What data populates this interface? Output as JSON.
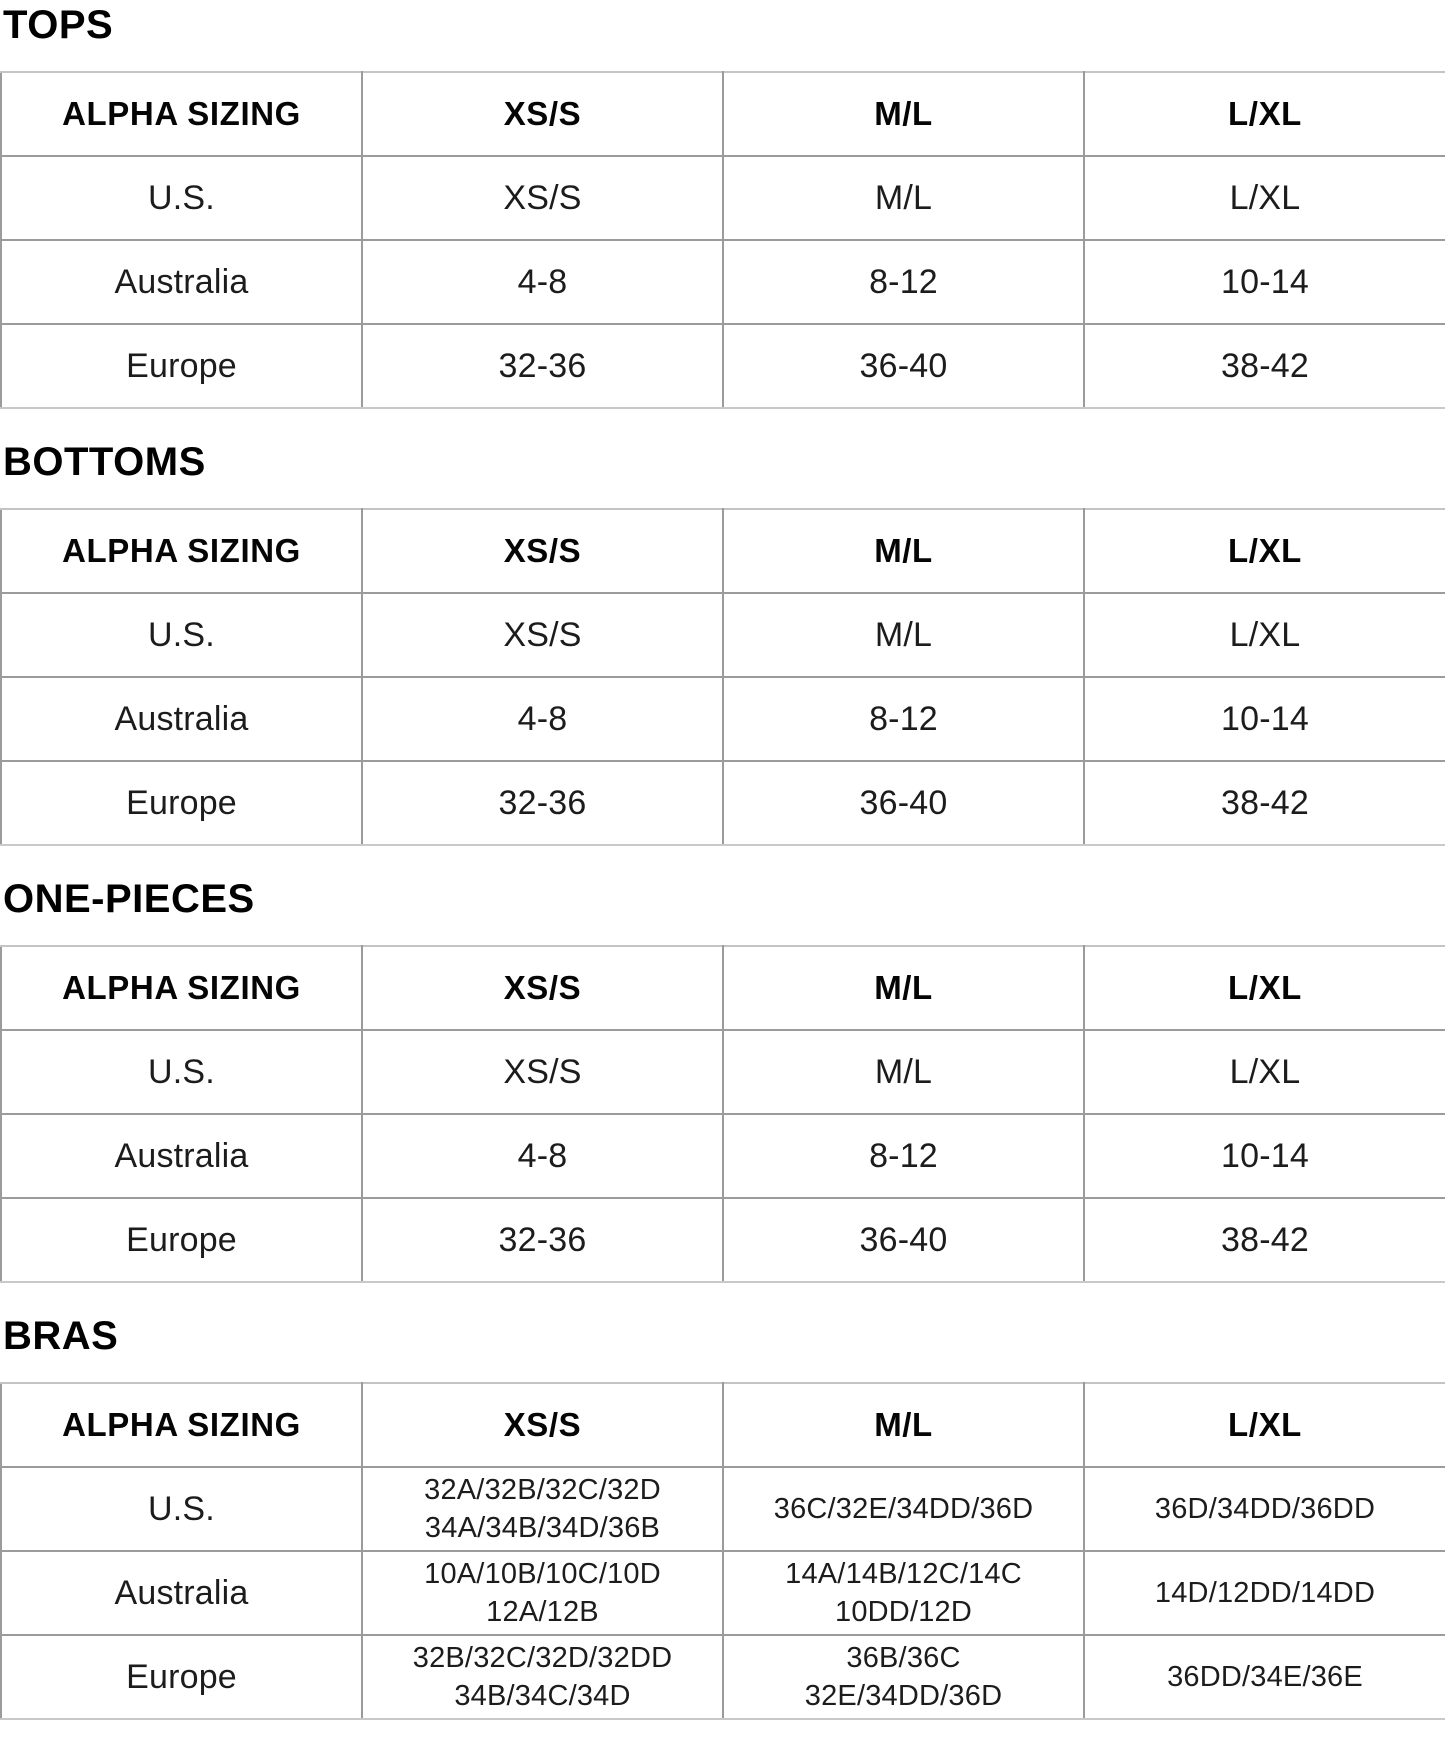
{
  "page": {
    "background": "#ffffff",
    "heading_color": "#000000",
    "body_text_color": "#1c1c1c",
    "inner_border_color": "#9b9b9b",
    "outer_border_color": "#c9c9c9"
  },
  "sections": [
    {
      "id": "tops",
      "title": "TOPS",
      "columns": [
        "ALPHA SIZING",
        "XS/S",
        "M/L",
        "L/XL"
      ],
      "compact_values": false,
      "rows": [
        {
          "label": "U.S.",
          "values": [
            [
              "XS/S"
            ],
            [
              "M/L"
            ],
            [
              "L/XL"
            ]
          ]
        },
        {
          "label": "Australia",
          "values": [
            [
              "4-8"
            ],
            [
              "8-12"
            ],
            [
              "10-14"
            ]
          ]
        },
        {
          "label": "Europe",
          "values": [
            [
              "32-36"
            ],
            [
              "36-40"
            ],
            [
              "38-42"
            ]
          ]
        }
      ]
    },
    {
      "id": "bottoms",
      "title": "BOTTOMS",
      "columns": [
        "ALPHA SIZING",
        "XS/S",
        "M/L",
        "L/XL"
      ],
      "compact_values": false,
      "rows": [
        {
          "label": "U.S.",
          "values": [
            [
              "XS/S"
            ],
            [
              "M/L"
            ],
            [
              "L/XL"
            ]
          ]
        },
        {
          "label": "Australia",
          "values": [
            [
              "4-8"
            ],
            [
              "8-12"
            ],
            [
              "10-14"
            ]
          ]
        },
        {
          "label": "Europe",
          "values": [
            [
              "32-36"
            ],
            [
              "36-40"
            ],
            [
              "38-42"
            ]
          ]
        }
      ]
    },
    {
      "id": "one-pieces",
      "title": "ONE-PIECES",
      "columns": [
        "ALPHA SIZING",
        "XS/S",
        "M/L",
        "L/XL"
      ],
      "compact_values": false,
      "rows": [
        {
          "label": "U.S.",
          "values": [
            [
              "XS/S"
            ],
            [
              "M/L"
            ],
            [
              "L/XL"
            ]
          ]
        },
        {
          "label": "Australia",
          "values": [
            [
              "4-8"
            ],
            [
              "8-12"
            ],
            [
              "10-14"
            ]
          ]
        },
        {
          "label": "Europe",
          "values": [
            [
              "32-36"
            ],
            [
              "36-40"
            ],
            [
              "38-42"
            ]
          ]
        }
      ]
    },
    {
      "id": "bras",
      "title": "BRAS",
      "columns": [
        "ALPHA SIZING",
        "XS/S",
        "M/L",
        "L/XL"
      ],
      "compact_values": true,
      "rows": [
        {
          "label": "U.S.",
          "values": [
            [
              "32A/32B/32C/32D",
              "34A/34B/34D/36B"
            ],
            [
              "36C/32E/34DD/36D"
            ],
            [
              "36D/34DD/36DD"
            ]
          ]
        },
        {
          "label": "Australia",
          "values": [
            [
              "10A/10B/10C/10D",
              "12A/12B"
            ],
            [
              "14A/14B/12C/14C",
              "10DD/12D"
            ],
            [
              "14D/12DD/14DD"
            ]
          ]
        },
        {
          "label": "Europe",
          "values": [
            [
              "32B/32C/32D/32DD",
              "34B/34C/34D"
            ],
            [
              "36B/36C",
              "32E/34DD/36D"
            ],
            [
              "36DD/34E/36E"
            ]
          ]
        }
      ]
    }
  ]
}
